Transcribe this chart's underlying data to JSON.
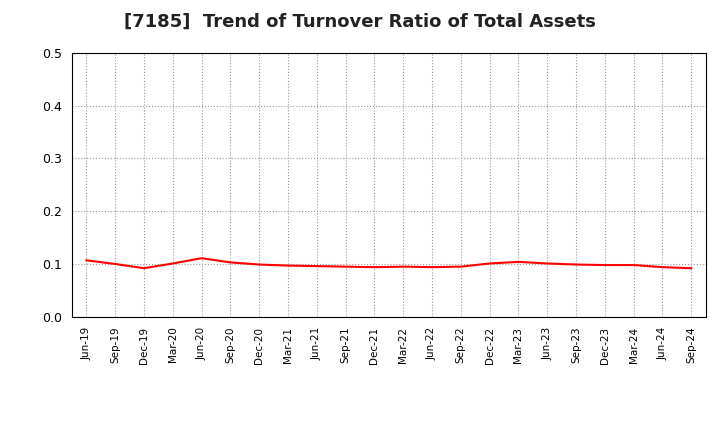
{
  "title": "[7185]  Trend of Turnover Ratio of Total Assets",
  "title_fontsize": 13,
  "line_color": "#FF0000",
  "line_width": 1.5,
  "background_color": "#FFFFFF",
  "ylim": [
    0.0,
    0.5
  ],
  "yticks": [
    0.0,
    0.1,
    0.2,
    0.3,
    0.4,
    0.5
  ],
  "grid_color": "#999999",
  "x_labels": [
    "Jun-19",
    "Sep-19",
    "Dec-19",
    "Mar-20",
    "Jun-20",
    "Sep-20",
    "Dec-20",
    "Mar-21",
    "Jun-21",
    "Sep-21",
    "Dec-21",
    "Mar-22",
    "Jun-22",
    "Sep-22",
    "Dec-22",
    "Mar-23",
    "Jun-23",
    "Sep-23",
    "Dec-23",
    "Mar-24",
    "Jun-24",
    "Sep-24"
  ],
  "values": [
    0.107,
    0.1,
    0.092,
    0.101,
    0.111,
    0.103,
    0.099,
    0.097,
    0.096,
    0.095,
    0.094,
    0.095,
    0.094,
    0.095,
    0.101,
    0.104,
    0.101,
    0.099,
    0.098,
    0.098,
    0.094,
    0.092
  ]
}
